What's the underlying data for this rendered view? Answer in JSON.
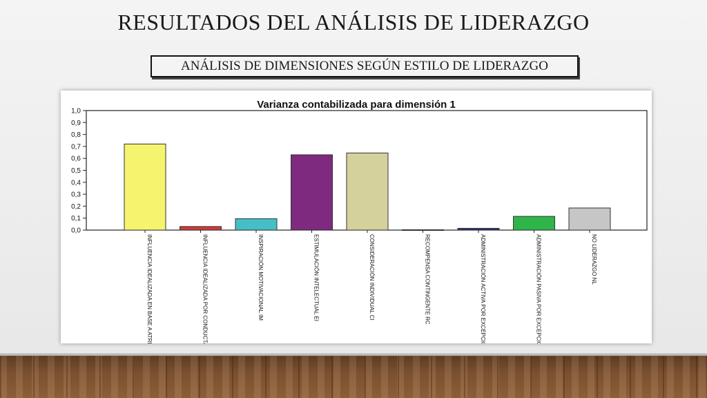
{
  "slide": {
    "title": "RESULTADOS DEL ANÁLISIS DE LIDERAZGO",
    "subtitle": "ANÁLISIS DE DIMENSIONES SEGÚN ESTILO DE LIDERAZGO"
  },
  "chart_data": {
    "type": "bar",
    "title": "Varianza contabilizada para dimensión 1",
    "xlabel": "",
    "ylabel": "",
    "ylim": [
      0,
      1.0
    ],
    "yticks": [
      "0,0",
      "0,1",
      "0,2",
      "0,3",
      "0,4",
      "0,5",
      "0,6",
      "0,7",
      "0,8",
      "0,9",
      "1,0"
    ],
    "grid": false,
    "categories": [
      "INFLUENCIA IDEALIZADA EN BASE A ATRIBUTOS II (A)",
      "INFLUENCIA IDEALIZADA POR CONDUCTA II (B)",
      "INSPIRACIÓN MOTIVACIONAL IM",
      "ESTIMULACIÓN INTELECTUAL EI",
      "CONSIDERACIÓN INDIVIDUAL CI",
      "RECOMPENSA CONTINGENTE RC",
      "ADMINISTRACIÓN ACTIVA POR EXCEPCIÓN APEA",
      "ADMINISTRACIÓN PASIVA POR EXCEPCIÓN APEP",
      "NO LIDERAZGO NL"
    ],
    "values": [
      0.72,
      0.03,
      0.095,
      0.63,
      0.645,
      0.003,
      0.015,
      0.115,
      0.185
    ],
    "colors": [
      "#f6f46e",
      "#d23a3a",
      "#45bfc6",
      "#7e2a7e",
      "#d4d19c",
      "#dcdcdc",
      "#2b2f73",
      "#2fb44a",
      "#c6c6c6"
    ]
  }
}
